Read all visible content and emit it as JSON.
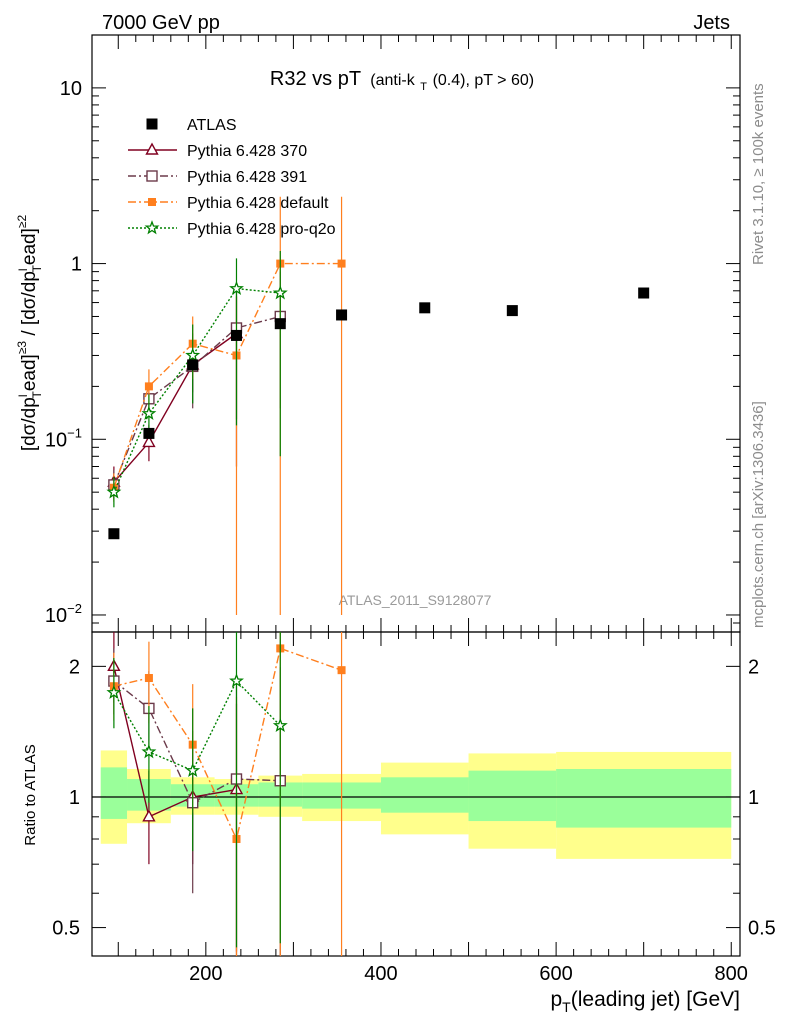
{
  "header": {
    "left": "7000 GeV pp",
    "right": "Jets"
  },
  "side_text": {
    "rivet": "Rivet 3.1.10, ≥ 100k events",
    "mcplots": "mcplots.cern.ch [arXiv:1306.3436]"
  },
  "chart_data": [
    {
      "type": "scatter",
      "panel": "main",
      "title": "R32 vs pT",
      "title_sub_parts": [
        "(anti-k",
        "T",
        "(0.4), pT > 60)"
      ],
      "watermark": "ATLAS_2011_S9128077",
      "ylabel": "[dσ/dp^l_T ead]^≥3 / [dσ/dp^l_T ead]^≥2",
      "ylabel_parts": [
        "[dσ/dp",
        "l",
        "T",
        "ead]",
        "≥3",
        " / [dσ/dp",
        "l",
        "T",
        "ead]",
        "≥2"
      ],
      "yscale": "log",
      "ylim": [
        0.008,
        20
      ],
      "xlim": [
        70,
        810
      ],
      "y_ticks": [
        {
          "value": 0.01,
          "base": "10",
          "exp": "−2"
        },
        {
          "value": 0.1,
          "base": "10",
          "exp": "−1"
        },
        {
          "value": 1,
          "base": "1",
          "exp": ""
        },
        {
          "value": 10,
          "base": "10",
          "exp": ""
        }
      ],
      "legend_position": "top-left",
      "series": [
        {
          "name": "ATLAS",
          "color": "#000000",
          "marker": "filled-square",
          "line": "none",
          "x": [
            95,
            135,
            185,
            235,
            285,
            355,
            450,
            550,
            700
          ],
          "y": [
            0.029,
            0.108,
            0.265,
            0.39,
            0.455,
            0.51,
            0.56,
            0.54,
            0.68
          ],
          "yerr_low": [
            0.001,
            0.003,
            0.006,
            0.01,
            0.015,
            0.015,
            0.02,
            0.02,
            0.03
          ],
          "yerr_high": [
            0.001,
            0.003,
            0.006,
            0.01,
            0.015,
            0.015,
            0.02,
            0.02,
            0.03
          ]
        },
        {
          "name": "Pythia 6.428 370",
          "color": "#800020",
          "marker": "open-triangle",
          "line": "solid",
          "x": [
            95,
            135,
            185,
            235
          ],
          "y": [
            0.057,
            0.096,
            0.265,
            0.4
          ],
          "yerr_low": [
            0.011,
            0.021,
            0.08,
            0.33
          ],
          "yerr_high": [
            0.013,
            0.025,
            0.1,
            0.25
          ]
        },
        {
          "name": "Pythia 6.428 391",
          "color": "#6b3a4a",
          "marker": "open-square",
          "line": "dashdot",
          "x": [
            95,
            135,
            185,
            235,
            285
          ],
          "y": [
            0.055,
            0.17,
            0.26,
            0.43,
            0.5
          ],
          "yerr_low": [
            0.01,
            0.03,
            0.11,
            0.3,
            0.35
          ],
          "yerr_high": [
            0.012,
            0.04,
            0.14,
            0.3,
            0.4
          ]
        },
        {
          "name": "Pythia 6.428 default",
          "color": "#ff7f1e",
          "marker": "filled-square-small",
          "line": "dashdot",
          "x": [
            95,
            135,
            185,
            235,
            285,
            355
          ],
          "y": [
            0.053,
            0.2,
            0.35,
            0.3,
            1.0,
            1.0
          ],
          "yerr_low": [
            0.009,
            0.04,
            0.13,
            0.29,
            0.99,
            0.99
          ],
          "yerr_high": [
            0.011,
            0.05,
            0.15,
            0.35,
            1.4,
            1.4
          ]
        },
        {
          "name": "Pythia 6.428 pro-q2o",
          "color": "#008000",
          "marker": "star",
          "line": "dotted",
          "x": [
            95,
            135,
            185,
            235,
            285
          ],
          "y": [
            0.05,
            0.14,
            0.3,
            0.72,
            0.68
          ],
          "yerr_low": [
            0.009,
            0.03,
            0.14,
            0.6,
            0.6
          ],
          "yerr_high": [
            0.011,
            0.04,
            0.15,
            0.35,
            0.5
          ]
        }
      ]
    },
    {
      "type": "scatter",
      "panel": "ratio",
      "ylabel": "Ratio to ATLAS",
      "xlabel_parts": [
        "p",
        "T",
        "(leading jet) [GeV]"
      ],
      "yscale": "log",
      "ylim": [
        0.43,
        2.4
      ],
      "xlim": [
        70,
        810
      ],
      "x_ticks": [
        200,
        400,
        600,
        800
      ],
      "y_ticks": [
        0.5,
        1,
        2
      ],
      "reference_line": 1,
      "bands": [
        {
          "x_from": 80,
          "x_to": 110,
          "green": [
            0.89,
            1.17
          ],
          "yellow": [
            0.78,
            1.28
          ]
        },
        {
          "x_from": 110,
          "x_to": 160,
          "green": [
            0.93,
            1.1
          ],
          "yellow": [
            0.87,
            1.16
          ]
        },
        {
          "x_from": 160,
          "x_to": 210,
          "green": [
            0.95,
            1.07
          ],
          "yellow": [
            0.91,
            1.11
          ]
        },
        {
          "x_from": 210,
          "x_to": 260,
          "green": [
            0.95,
            1.07
          ],
          "yellow": [
            0.91,
            1.1
          ]
        },
        {
          "x_from": 260,
          "x_to": 310,
          "green": [
            0.95,
            1.08
          ],
          "yellow": [
            0.9,
            1.12
          ]
        },
        {
          "x_from": 310,
          "x_to": 400,
          "green": [
            0.94,
            1.08
          ],
          "yellow": [
            0.88,
            1.13
          ]
        },
        {
          "x_from": 400,
          "x_to": 500,
          "green": [
            0.92,
            1.11
          ],
          "yellow": [
            0.82,
            1.2
          ]
        },
        {
          "x_from": 500,
          "x_to": 600,
          "green": [
            0.88,
            1.15
          ],
          "yellow": [
            0.76,
            1.26
          ]
        },
        {
          "x_from": 600,
          "x_to": 800,
          "green": [
            0.85,
            1.16
          ],
          "yellow": [
            0.72,
            1.27
          ]
        }
      ],
      "series": [
        {
          "name": "Pythia 6.428 370",
          "color": "#800020",
          "marker": "open-triangle",
          "line": "solid",
          "x": [
            95,
            135,
            185,
            235
          ],
          "y": [
            2.0,
            0.9,
            1.0,
            1.04
          ],
          "yerr_low": [
            0.35,
            0.2,
            0.3,
            0.6
          ],
          "yerr_high": [
            0.4,
            0.25,
            0.35,
            0.6
          ]
        },
        {
          "name": "Pythia 6.428 391",
          "color": "#6b3a4a",
          "marker": "open-square",
          "line": "dashdot",
          "x": [
            95,
            135,
            185,
            235,
            285
          ],
          "y": [
            1.85,
            1.6,
            0.97,
            1.1,
            1.09
          ],
          "yerr_low": [
            0.3,
            0.3,
            0.37,
            0.7,
            0.7
          ],
          "yerr_high": [
            0.35,
            0.35,
            0.45,
            0.7,
            0.9
          ]
        },
        {
          "name": "Pythia 6.428 default",
          "color": "#ff7f1e",
          "marker": "filled-square-small",
          "line": "dashdot",
          "x": [
            95,
            135,
            185,
            235,
            285,
            355
          ],
          "y": [
            1.8,
            1.88,
            1.32,
            0.8,
            2.2,
            1.96
          ],
          "yerr_low": [
            0.3,
            0.4,
            0.4,
            0.38,
            1.78,
            1.54
          ],
          "yerr_high": [
            0.35,
            0.4,
            0.5,
            0.9,
            1.0,
            1.0
          ]
        },
        {
          "name": "Pythia 6.428 pro-q2o",
          "color": "#008000",
          "marker": "star",
          "line": "dotted",
          "x": [
            95,
            135,
            185,
            235,
            285
          ],
          "y": [
            1.74,
            1.27,
            1.15,
            1.85,
            1.46
          ],
          "yerr_low": [
            0.3,
            0.3,
            0.4,
            1.4,
            1.0
          ],
          "yerr_high": [
            0.35,
            0.35,
            0.45,
            1.2,
            1.0
          ]
        }
      ]
    }
  ]
}
